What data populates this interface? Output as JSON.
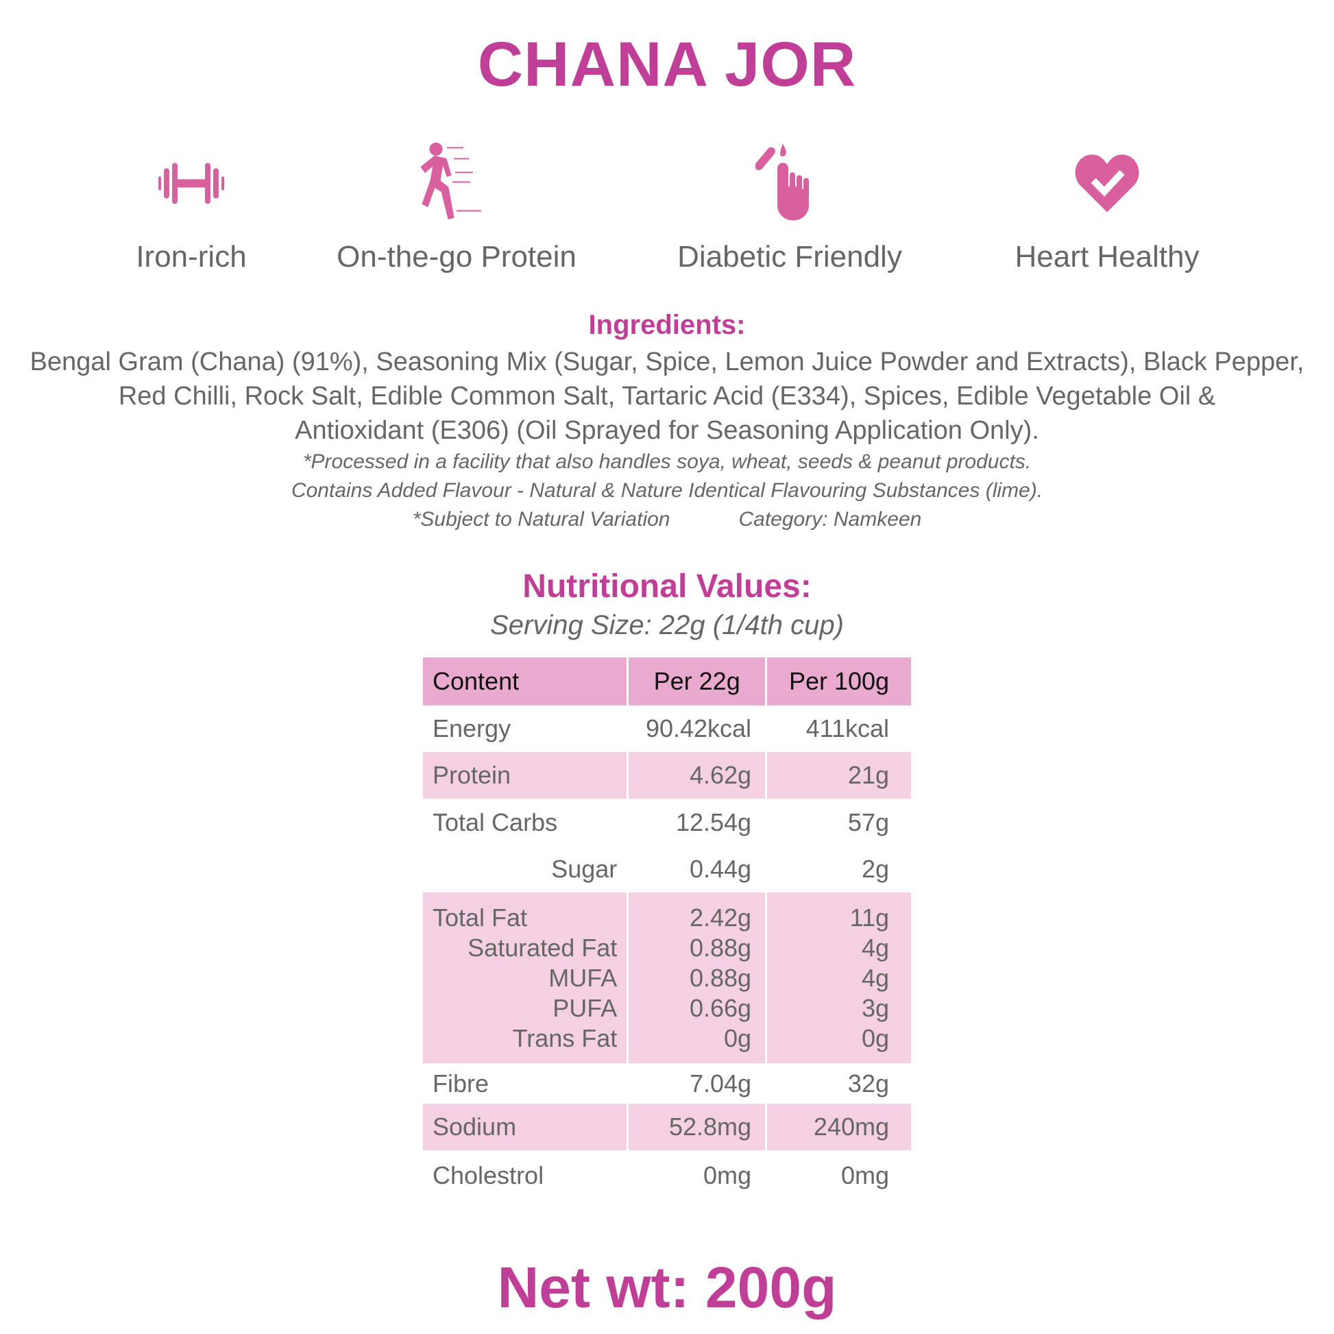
{
  "title": "CHANA JOR",
  "icon_color": "#d9609e",
  "accent_color": "#bf3f97",
  "features": [
    {
      "icon": "dumbbell-icon",
      "label": "Iron-rich"
    },
    {
      "icon": "running-person-icon",
      "label": "On-the-go Protein"
    },
    {
      "icon": "glucose-finger-prick-icon",
      "label": "Diabetic Friendly"
    },
    {
      "icon": "heart-check-icon",
      "label": "Heart Healthy"
    }
  ],
  "ingredients": {
    "heading": "Ingredients:",
    "lines": [
      "Bengal Gram (Chana) (91%), Seasoning Mix (Sugar, Spice, Lemon Juice Powder and Extracts), Black Pepper,",
      "Red Chilli,  Rock Salt, Edible Common Salt, Tartaric Acid (E334), Spices, Edible  Vegetable Oil  &",
      "Antioxidant (E306) (Oil Sprayed for Seasoning  Application Only)."
    ],
    "notes": [
      "*Processed in a facility that also handles soya, wheat, seeds & peanut products.",
      "Contains Added Flavour - Natural & Nature Identical Flavouring Substances (lime)."
    ],
    "variation": "*Subject to Natural Variation",
    "category": "Category: Namkeen"
  },
  "nutrition": {
    "heading": "Nutritional Values:",
    "serving": "Serving Size: 22g (1/4th cup)",
    "columns": [
      "Content",
      "Per 22g",
      "Per 100g"
    ],
    "rows": [
      {
        "shade": false,
        "items": [
          [
            "Energy",
            "90.42kcal",
            "411kcal"
          ]
        ]
      },
      {
        "shade": true,
        "items": [
          [
            "Protein",
            "4.62g",
            "21g"
          ]
        ]
      },
      {
        "shade": false,
        "items": [
          [
            "Total Carbs",
            "12.54g",
            "57g"
          ]
        ]
      },
      {
        "shade": false,
        "sub": true,
        "items": [
          [
            "Sugar",
            "0.44g",
            "2g"
          ]
        ]
      },
      {
        "shade": true,
        "items": [
          [
            "Total Fat",
            "2.42g",
            "11g"
          ],
          [
            "Saturated Fat",
            "0.88g",
            "4g"
          ],
          [
            "MUFA",
            "0.88g",
            "4g"
          ],
          [
            "PUFA",
            "0.66g",
            "3g"
          ],
          [
            "Trans Fat",
            "0g",
            "0g"
          ]
        ]
      },
      {
        "shade": false,
        "items": [
          [
            "Fibre",
            "7.04g",
            "32g"
          ]
        ]
      },
      {
        "shade": true,
        "items": [
          [
            "Sodium",
            "52.8mg",
            "240mg"
          ]
        ]
      },
      {
        "shade": false,
        "items": [
          [
            "Cholestrol",
            "0mg",
            "0mg"
          ]
        ]
      }
    ]
  },
  "net_weight": "Net wt: 200g"
}
